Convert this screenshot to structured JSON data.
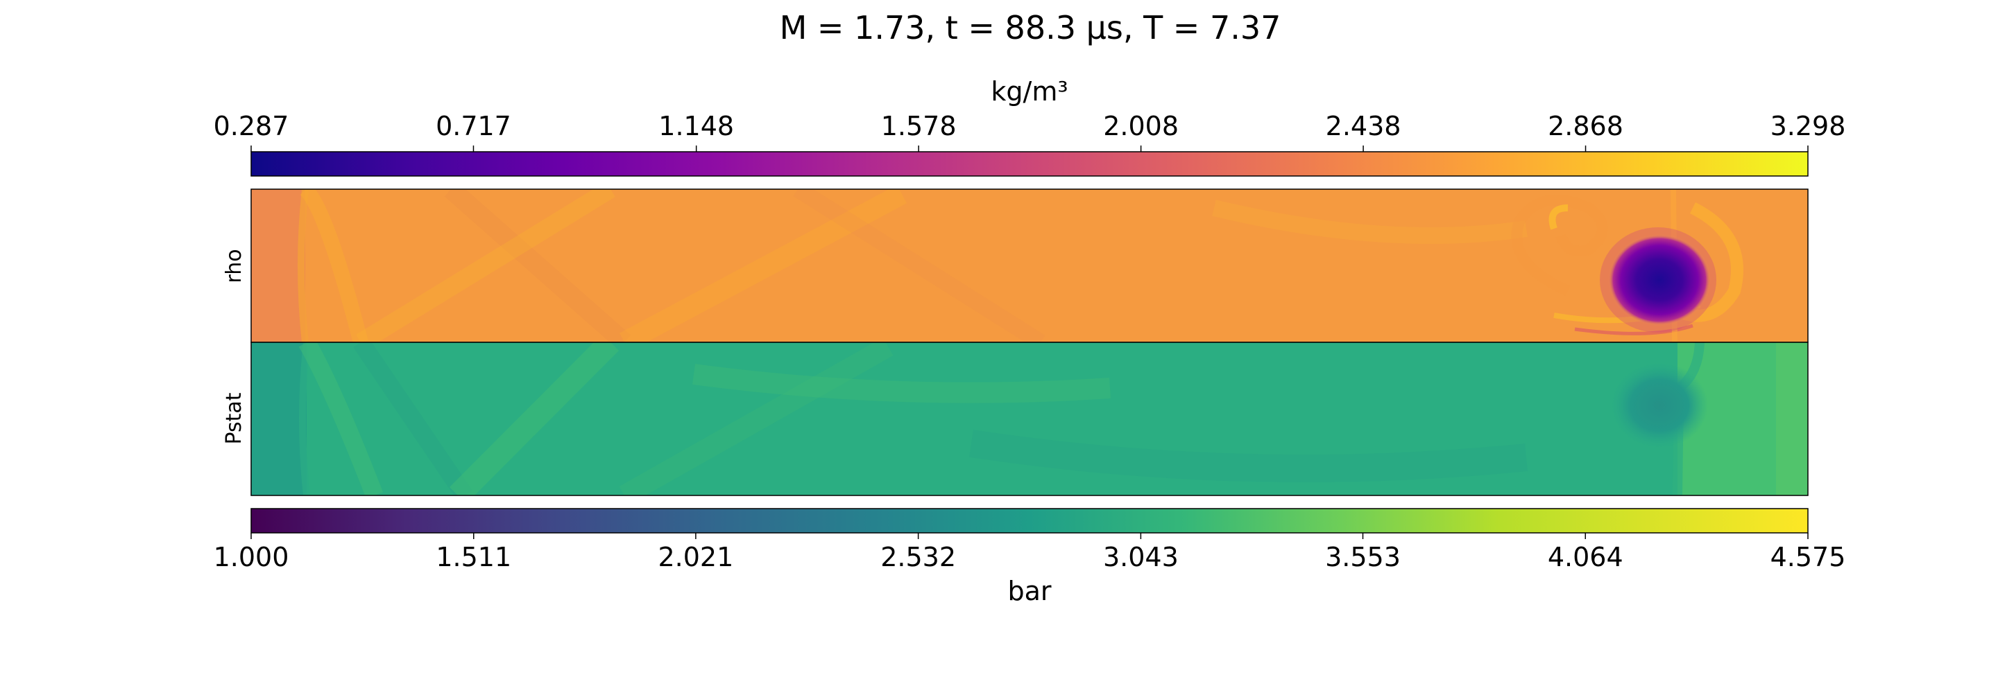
{
  "title": "M = 1.73, t = 88.3 μs, T = 7.37",
  "chart_data": {
    "type": "heatmap",
    "title": "M = 1.73, t = 88.3 μs, T = 7.37",
    "panels": [
      {
        "name": "rho",
        "ylabel": "rho",
        "colormap": "plasma",
        "colorbar": {
          "label": "kg/m³",
          "position": "top",
          "range": [
            0.287,
            3.298
          ],
          "ticks": [
            "0.287",
            "0.717",
            "1.148",
            "1.578",
            "2.008",
            "2.438",
            "2.868",
            "3.298"
          ]
        },
        "field": {
          "background_value": 2.55,
          "features": [
            {
              "kind": "vortex-low-density-core",
              "min_value": 0.35
            },
            {
              "kind": "left-region",
              "value": 2.35
            },
            {
              "kind": "oblique-shock-waves"
            },
            {
              "kind": "vortex-roll-up-filaments"
            }
          ]
        }
      },
      {
        "name": "Pstat",
        "ylabel": "Pstat",
        "colormap": "viridis",
        "colorbar": {
          "label": "bar",
          "position": "bottom",
          "range": [
            1.0,
            4.575
          ],
          "ticks": [
            "1.000",
            "1.511",
            "2.021",
            "2.532",
            "3.043",
            "3.553",
            "4.064",
            "4.575"
          ]
        },
        "field": {
          "background_value": 3.25,
          "features": [
            {
              "kind": "left-region",
              "value": 3.0
            },
            {
              "kind": "vortex-low-pressure-core",
              "min_value": 2.9
            },
            {
              "kind": "right-region",
              "value": 3.55
            },
            {
              "kind": "oblique-shock-waves"
            }
          ]
        }
      }
    ]
  }
}
